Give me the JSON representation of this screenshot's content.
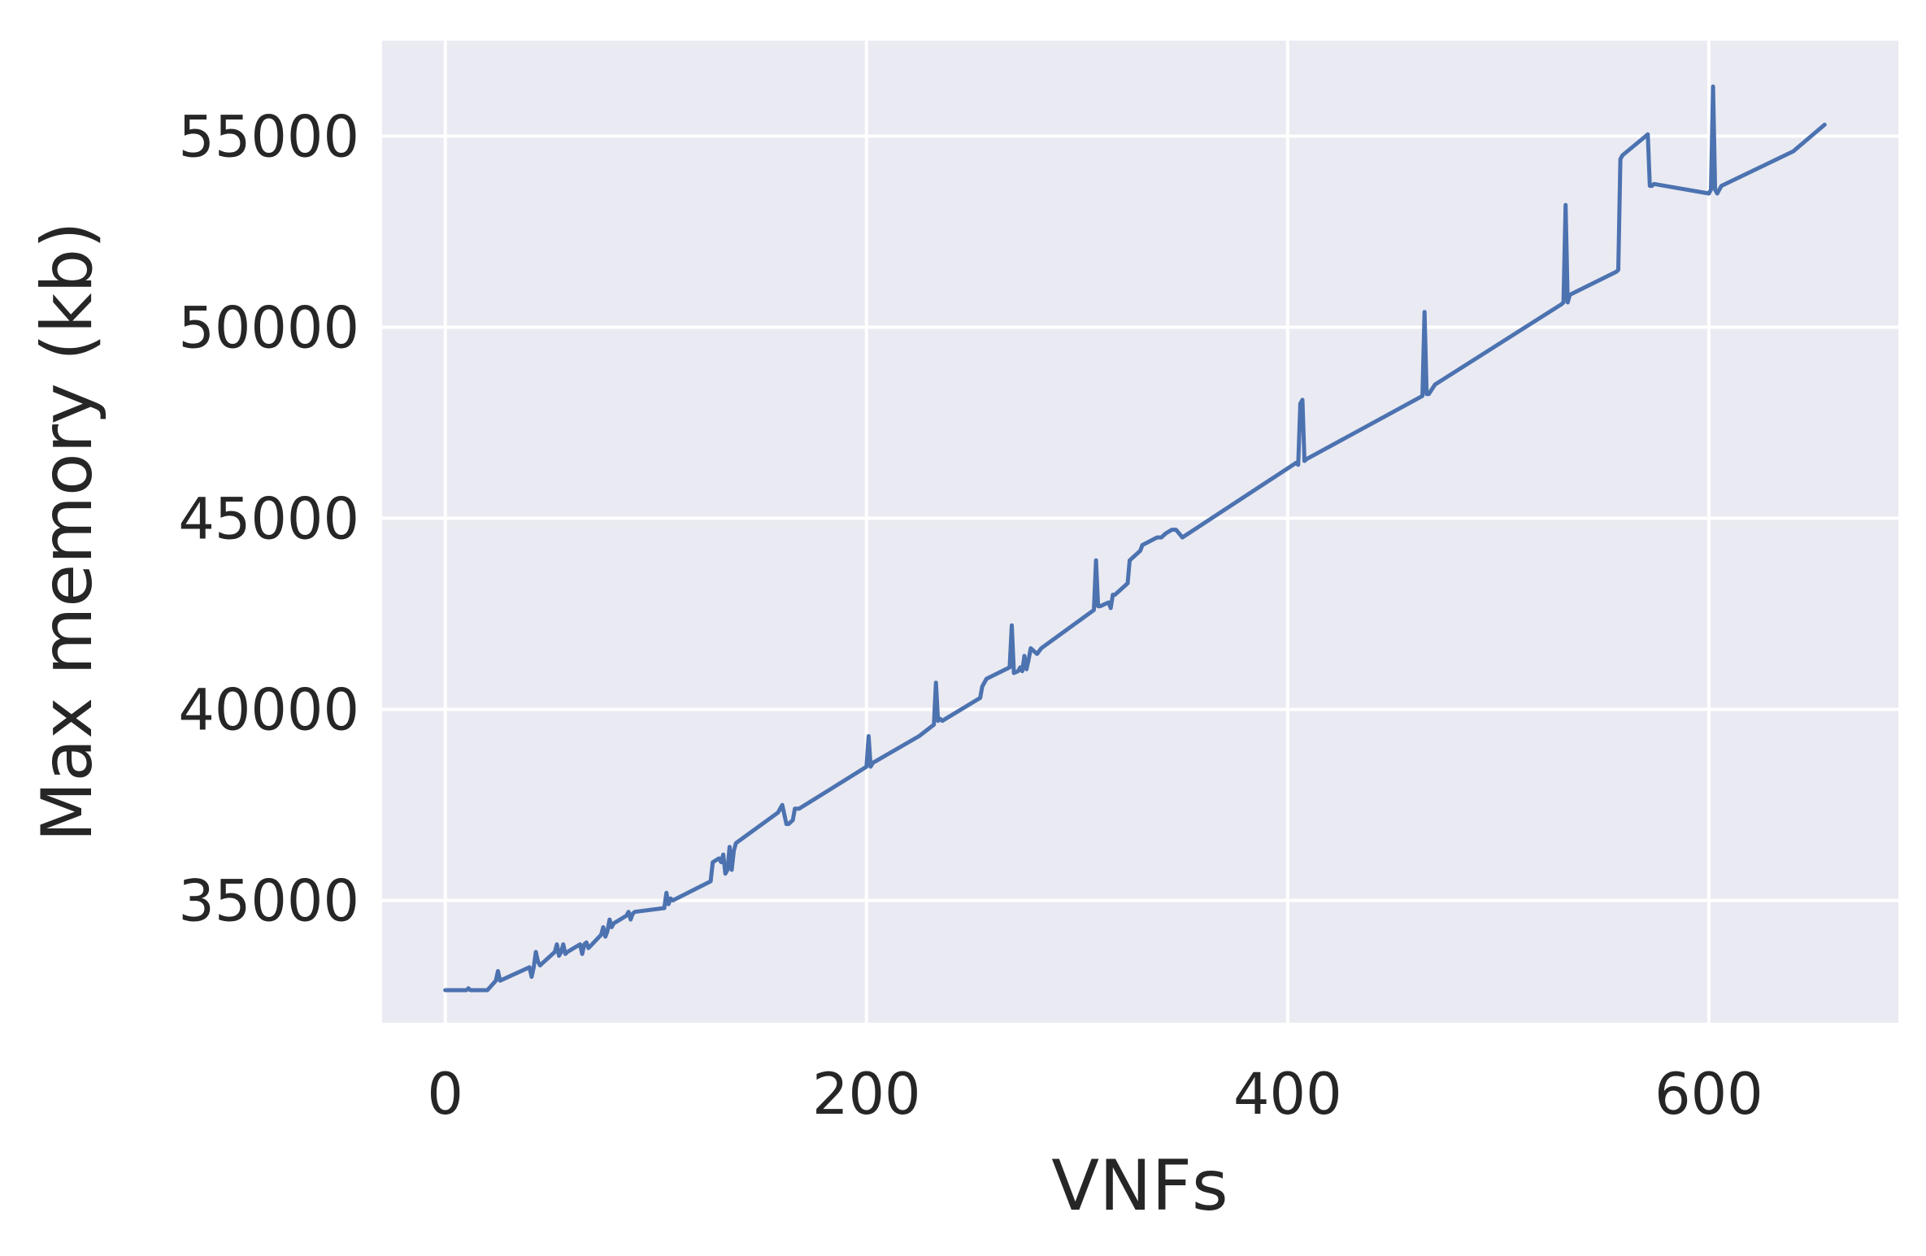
{
  "chart_data": {
    "type": "line",
    "title": "",
    "xlabel": "VNFs",
    "ylabel": "Max memory (kb)",
    "xlim": [
      -30,
      690
    ],
    "ylim": [
      31800,
      57500
    ],
    "xticks": [
      0,
      200,
      400,
      600
    ],
    "yticks": [
      35000,
      40000,
      45000,
      50000,
      55000
    ],
    "grid": true,
    "legend": "none",
    "colors": {
      "line": "#4c72b0",
      "background": "#eaeaf2",
      "grid": "#ffffff",
      "text": "#262626"
    },
    "series": [
      {
        "x": [
          0,
          10,
          11,
          12,
          20,
          24,
          25,
          26,
          40,
          41,
          42,
          43,
          44,
          45,
          46,
          52,
          53,
          54,
          55,
          56,
          57,
          58,
          64,
          65,
          66,
          67,
          68,
          74,
          75,
          76,
          77,
          78,
          79,
          80,
          86,
          87,
          88,
          89,
          90,
          104,
          105,
          106,
          107,
          108,
          126,
          127,
          130,
          131,
          132,
          133,
          134,
          135,
          136,
          137,
          138,
          158,
          160,
          162,
          163,
          165,
          166,
          168,
          200,
          201,
          202,
          203,
          225,
          232,
          233,
          234,
          235,
          236,
          254,
          255,
          257,
          268,
          269,
          270,
          272,
          273,
          274,
          275,
          276,
          277,
          278,
          280,
          281,
          283,
          308,
          309,
          310,
          311,
          315,
          316,
          317,
          318,
          324,
          325,
          327,
          330,
          331,
          338,
          340,
          342,
          345,
          347,
          350,
          404,
          405,
          406,
          407,
          408,
          409,
          464,
          465,
          466,
          467,
          470,
          530,
          531,
          532,
          533,
          534,
          556,
          557,
          558,
          559,
          570,
          571,
          572,
          573,
          574,
          600,
          601,
          602,
          603,
          604,
          606,
          640,
          655
        ],
        "values": [
          32650,
          32650,
          32700,
          32650,
          32650,
          32900,
          33150,
          32900,
          33250,
          33000,
          33250,
          33650,
          33400,
          33300,
          33350,
          33650,
          33850,
          33550,
          33650,
          33850,
          33600,
          33650,
          33850,
          33600,
          33850,
          33900,
          33750,
          34100,
          34300,
          34050,
          34200,
          34500,
          34300,
          34400,
          34600,
          34700,
          34500,
          34650,
          34700,
          34800,
          35200,
          34900,
          35050,
          35000,
          35500,
          36000,
          36100,
          36000,
          36200,
          35700,
          35800,
          36400,
          35800,
          36300,
          36500,
          37300,
          37500,
          37000,
          37000,
          37100,
          37400,
          37400,
          38500,
          39300,
          38500,
          38600,
          39300,
          39600,
          40700,
          39700,
          39750,
          39700,
          40300,
          40600,
          40800,
          41100,
          42200,
          40950,
          41000,
          41100,
          41000,
          41400,
          41050,
          41300,
          41600,
          41500,
          41450,
          41600,
          42600,
          43900,
          42700,
          42700,
          42800,
          42650,
          43000,
          43000,
          43300,
          43900,
          44000,
          44150,
          44300,
          44500,
          44500,
          44600,
          44700,
          44700,
          44500,
          46450,
          46400,
          48000,
          48100,
          46500,
          46550,
          48200,
          50400,
          48250,
          48250,
          48500,
          50600,
          50650,
          53200,
          50650,
          50850,
          51450,
          51500,
          54400,
          54500,
          55000,
          55050,
          53700,
          53700,
          53750,
          53500,
          53600,
          56300,
          53600,
          53500,
          53700,
          54600,
          55300
        ]
      }
    ]
  }
}
